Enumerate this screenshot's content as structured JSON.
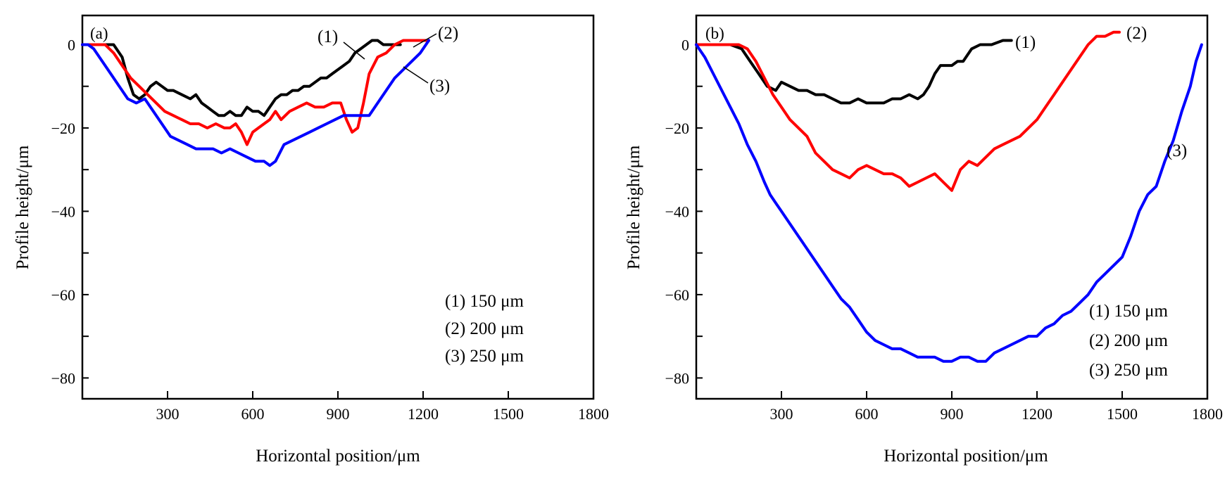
{
  "chart_data": [
    {
      "type": "line",
      "panel_label": "(a)",
      "xlabel": "Horizontal position/μm",
      "ylabel": "Profile height/μm",
      "xlim": [
        0,
        1800
      ],
      "ylim": [
        -85,
        7
      ],
      "xticks": [
        300,
        600,
        900,
        1200,
        1500,
        1800
      ],
      "yticks": [
        0,
        -20,
        -40,
        -60,
        -80
      ],
      "y_minor_step": 10,
      "grid": false,
      "legend_position": "bottom-right",
      "legend": [
        "(1) 150 μm",
        "(2) 200 μm",
        "(3) 250 μm"
      ],
      "curve_labels": [
        "(1)",
        "(2)",
        "(3)"
      ],
      "series": [
        {
          "color": "#000000",
          "x": [
            0,
            50,
            80,
            110,
            140,
            160,
            180,
            200,
            220,
            240,
            260,
            280,
            300,
            320,
            350,
            380,
            400,
            420,
            440,
            460,
            480,
            500,
            520,
            540,
            560,
            580,
            600,
            620,
            640,
            660,
            680,
            700,
            720,
            740,
            760,
            780,
            800,
            820,
            840,
            860,
            880,
            900,
            920,
            940,
            960,
            980,
            1000,
            1020,
            1040,
            1060,
            1080,
            1100,
            1120
          ],
          "y": [
            0,
            0,
            0,
            0,
            -3,
            -8,
            -12,
            -13,
            -12,
            -10,
            -9,
            -10,
            -11,
            -11,
            -12,
            -13,
            -12,
            -14,
            -15,
            -16,
            -17,
            -17,
            -16,
            -17,
            -17,
            -15,
            -16,
            -16,
            -17,
            -15,
            -13,
            -12,
            -12,
            -11,
            -11,
            -10,
            -10,
            -9,
            -8,
            -8,
            -7,
            -6,
            -5,
            -4,
            -2,
            -1,
            0,
            1,
            1,
            0,
            0,
            0,
            0
          ]
        },
        {
          "color": "#ff0000",
          "x": [
            0,
            40,
            80,
            110,
            140,
            170,
            200,
            230,
            260,
            290,
            320,
            350,
            380,
            410,
            440,
            470,
            500,
            520,
            540,
            560,
            580,
            600,
            620,
            640,
            660,
            680,
            700,
            730,
            760,
            790,
            820,
            850,
            880,
            910,
            930,
            950,
            970,
            990,
            1010,
            1040,
            1070,
            1100,
            1130,
            1160,
            1190,
            1220
          ],
          "y": [
            0,
            0,
            0,
            -2,
            -5,
            -8,
            -10,
            -12,
            -14,
            -16,
            -17,
            -18,
            -19,
            -19,
            -20,
            -19,
            -20,
            -20,
            -19,
            -21,
            -24,
            -21,
            -20,
            -19,
            -18,
            -16,
            -18,
            -16,
            -15,
            -14,
            -15,
            -15,
            -14,
            -14,
            -18,
            -21,
            -20,
            -14,
            -7,
            -3,
            -2,
            0,
            1,
            1,
            1,
            1
          ]
        },
        {
          "color": "#0000ff",
          "x": [
            0,
            20,
            40,
            60,
            80,
            100,
            130,
            160,
            190,
            220,
            250,
            280,
            310,
            340,
            370,
            400,
            430,
            460,
            490,
            520,
            550,
            580,
            610,
            640,
            660,
            680,
            710,
            740,
            770,
            800,
            830,
            860,
            890,
            920,
            950,
            980,
            1010,
            1040,
            1070,
            1100,
            1130,
            1160,
            1190,
            1220
          ],
          "y": [
            0,
            0,
            -1,
            -3,
            -5,
            -7,
            -10,
            -13,
            -14,
            -13,
            -16,
            -19,
            -22,
            -23,
            -24,
            -25,
            -25,
            -25,
            -26,
            -25,
            -26,
            -27,
            -28,
            -28,
            -29,
            -28,
            -24,
            -23,
            -22,
            -21,
            -20,
            -19,
            -18,
            -17,
            -17,
            -17,
            -17,
            -14,
            -11,
            -8,
            -6,
            -4,
            -2,
            1
          ]
        }
      ]
    },
    {
      "type": "line",
      "panel_label": "(b)",
      "xlabel": "Horizontal position/μm",
      "ylabel": "Profile height/μm",
      "xlim": [
        0,
        1800
      ],
      "ylim": [
        -85,
        7
      ],
      "xticks": [
        300,
        600,
        900,
        1200,
        1500,
        1800
      ],
      "yticks": [
        0,
        -20,
        -40,
        -60,
        -80
      ],
      "y_minor_step": 10,
      "grid": false,
      "legend_position": "bottom-right",
      "legend": [
        "(1) 150 μm",
        "(2) 200 μm",
        "(3) 250 μm"
      ],
      "curve_labels": [
        "(1)",
        "(2)",
        "(3)"
      ],
      "series": [
        {
          "color": "#000000",
          "x": [
            0,
            40,
            80,
            120,
            160,
            190,
            220,
            250,
            280,
            300,
            330,
            360,
            390,
            420,
            450,
            480,
            510,
            540,
            570,
            600,
            630,
            660,
            690,
            720,
            750,
            780,
            800,
            820,
            840,
            860,
            880,
            900,
            920,
            940,
            970,
            1000,
            1040,
            1080,
            1110
          ],
          "y": [
            0,
            0,
            0,
            0,
            -1,
            -4,
            -7,
            -10,
            -11,
            -9,
            -10,
            -11,
            -11,
            -12,
            -12,
            -13,
            -14,
            -14,
            -13,
            -14,
            -14,
            -14,
            -13,
            -13,
            -12,
            -13,
            -12,
            -10,
            -7,
            -5,
            -5,
            -5,
            -4,
            -4,
            -1,
            0,
            0,
            1,
            1
          ]
        },
        {
          "color": "#ff0000",
          "x": [
            0,
            60,
            120,
            150,
            180,
            210,
            240,
            270,
            300,
            330,
            360,
            390,
            420,
            450,
            480,
            510,
            540,
            570,
            600,
            630,
            660,
            690,
            720,
            750,
            780,
            810,
            840,
            870,
            900,
            930,
            960,
            990,
            1020,
            1050,
            1080,
            1110,
            1140,
            1170,
            1200,
            1230,
            1260,
            1290,
            1320,
            1350,
            1380,
            1410,
            1440,
            1470,
            1490
          ],
          "y": [
            0,
            0,
            0,
            0,
            -1,
            -4,
            -8,
            -12,
            -15,
            -18,
            -20,
            -22,
            -26,
            -28,
            -30,
            -31,
            -32,
            -30,
            -29,
            -30,
            -31,
            -31,
            -32,
            -34,
            -33,
            -32,
            -31,
            -33,
            -35,
            -30,
            -28,
            -29,
            -27,
            -25,
            -24,
            -23,
            -22,
            -20,
            -18,
            -15,
            -12,
            -9,
            -6,
            -3,
            0,
            2,
            2,
            3,
            3
          ]
        },
        {
          "color": "#0000ff",
          "x": [
            0,
            30,
            60,
            90,
            120,
            150,
            180,
            210,
            240,
            260,
            280,
            300,
            330,
            360,
            390,
            420,
            450,
            480,
            510,
            540,
            570,
            600,
            630,
            660,
            690,
            720,
            750,
            780,
            810,
            840,
            870,
            900,
            930,
            960,
            990,
            1020,
            1050,
            1080,
            1110,
            1140,
            1170,
            1200,
            1230,
            1260,
            1290,
            1320,
            1350,
            1380,
            1410,
            1440,
            1470,
            1500,
            1530,
            1560,
            1590,
            1620,
            1650,
            1680,
            1710,
            1740,
            1760,
            1780
          ],
          "y": [
            0,
            -3,
            -7,
            -11,
            -15,
            -19,
            -24,
            -28,
            -33,
            -36,
            -38,
            -40,
            -43,
            -46,
            -49,
            -52,
            -55,
            -58,
            -61,
            -63,
            -66,
            -69,
            -71,
            -72,
            -73,
            -73,
            -74,
            -75,
            -75,
            -75,
            -76,
            -76,
            -75,
            -75,
            -76,
            -76,
            -74,
            -73,
            -72,
            -71,
            -70,
            -70,
            -68,
            -67,
            -65,
            -64,
            -62,
            -60,
            -57,
            -55,
            -53,
            -51,
            -46,
            -40,
            -36,
            -34,
            -28,
            -23,
            -16,
            -10,
            -4,
            0
          ]
        }
      ]
    }
  ]
}
